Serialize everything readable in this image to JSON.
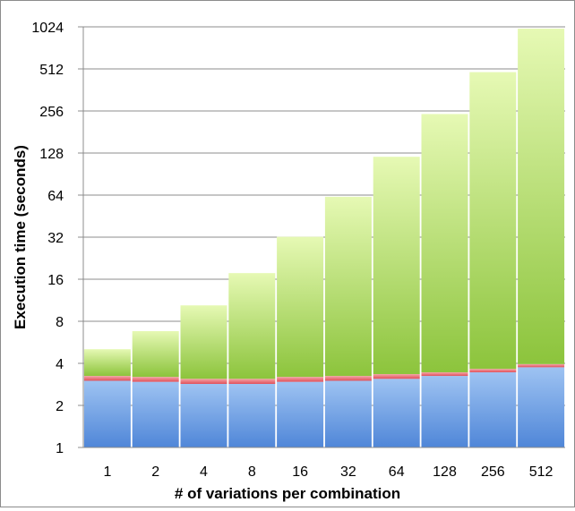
{
  "chart_data": {
    "type": "bar",
    "stacked": true,
    "y_scale": "log2",
    "title": "",
    "xlabel": "# of variations per combination",
    "ylabel": "Execution time (seconds)",
    "ylim": [
      1,
      1024
    ],
    "y_ticks": [
      "1",
      "2",
      "4",
      "8",
      "16",
      "32",
      "64",
      "128",
      "256",
      "512",
      "1024"
    ],
    "grid": true,
    "legend": "none",
    "categories": [
      "1",
      "2",
      "4",
      "8",
      "16",
      "32",
      "64",
      "128",
      "256",
      "512"
    ],
    "series": [
      {
        "color": "#4f86d8",
        "values": [
          2.0,
          1.95,
          1.85,
          1.85,
          1.95,
          2.0,
          2.1,
          2.25,
          2.45,
          2.75
        ]
      },
      {
        "color": "#e0505a",
        "values": [
          0.25,
          0.25,
          0.25,
          0.25,
          0.25,
          0.25,
          0.25,
          0.2,
          0.2,
          0.2
        ]
      },
      {
        "color": "#8cc43c",
        "values": [
          1.8,
          3.6,
          7.3,
          14.6,
          29.0,
          59.0,
          117.0,
          240.0,
          482.0,
          990.0
        ]
      }
    ]
  }
}
